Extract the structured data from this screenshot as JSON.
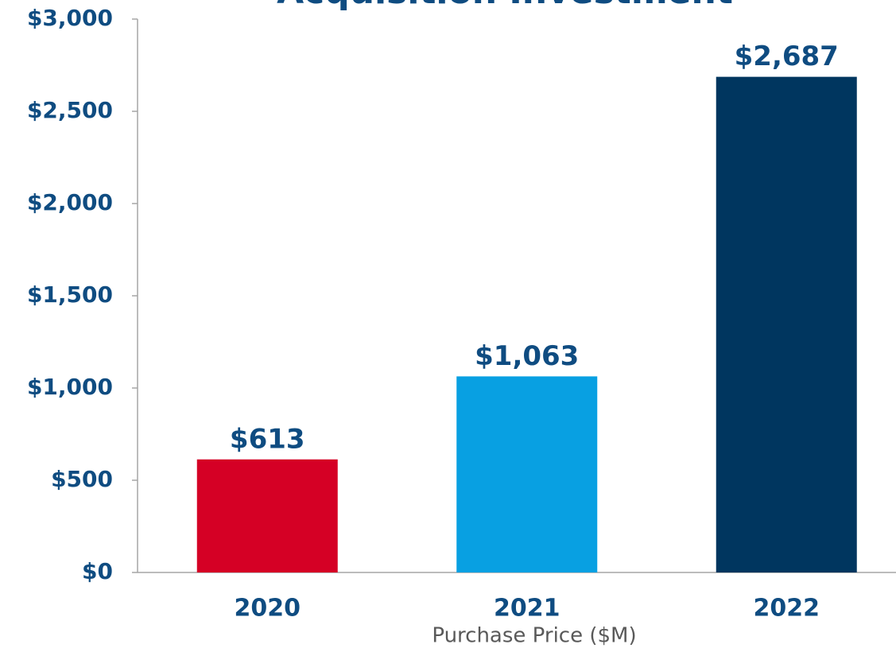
{
  "chart_data": {
    "type": "bar",
    "title": "Acquisition Investment",
    "x_label": "Purchase Price ($M)",
    "categories": [
      "2020",
      "2021",
      "2022"
    ],
    "values": [
      613,
      1063,
      2687
    ],
    "value_labels": [
      "$613",
      "$1,063",
      "$2,687"
    ],
    "colors": [
      "#d50025",
      "#08a0e2",
      "#00365f"
    ],
    "ylim": [
      0,
      3000
    ],
    "yticks": [
      {
        "value": 0,
        "label": "$0"
      },
      {
        "value": 500,
        "label": "$500"
      },
      {
        "value": 1000,
        "label": "$1,000"
      },
      {
        "value": 1500,
        "label": "$1,500"
      },
      {
        "value": 2000,
        "label": "$2,000"
      },
      {
        "value": 2500,
        "label": "$2,500"
      },
      {
        "value": 3000,
        "label": "$3,000"
      }
    ],
    "grid": false
  }
}
